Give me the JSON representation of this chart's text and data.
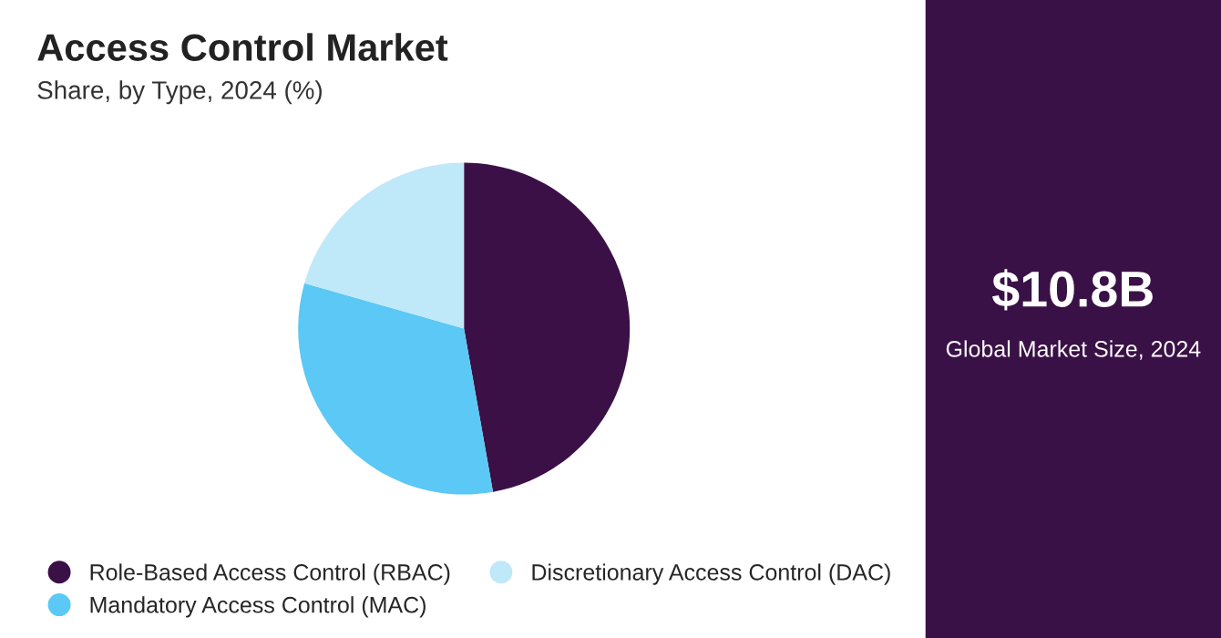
{
  "chart_data": {
    "type": "pie",
    "title": "Access Control Market",
    "subtitle": "Share, by Type, 2024 (%)",
    "categories": [
      "Role-Based Access Control (RBAC)",
      "Mandatory Access Control (MAC)",
      "Discretionary Access Control (DAC)"
    ],
    "values": [
      47.2,
      32.2,
      20.6
    ],
    "colors": [
      "#3b1046",
      "#5bc8f5",
      "#bfe8f9"
    ],
    "legend": "bottom",
    "annotations": [
      "$10.8B",
      "Global Market Size, 2024"
    ]
  }
}
